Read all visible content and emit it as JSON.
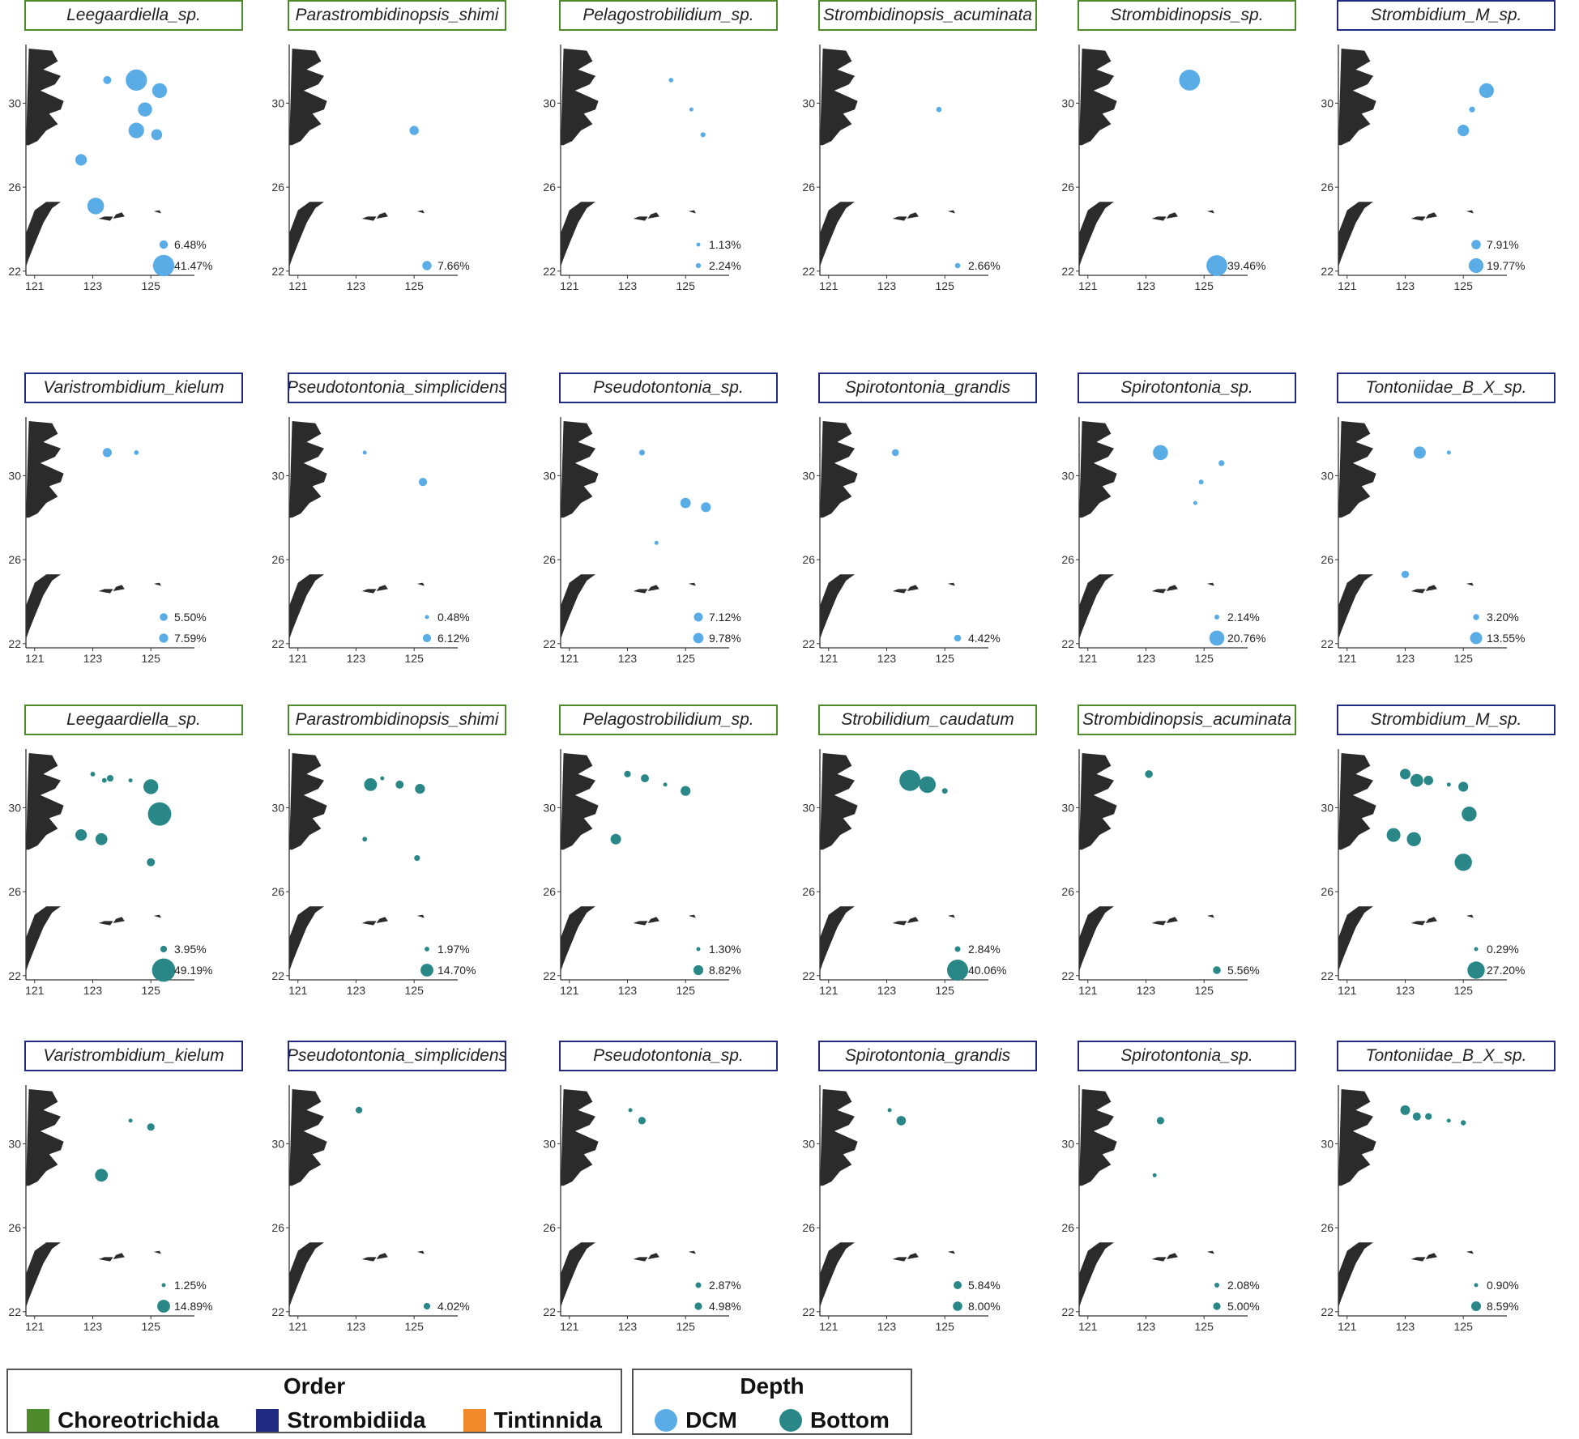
{
  "colors": {
    "land": "#2b2b2b",
    "dcm": "#5aace6",
    "bottom": "#2a8787",
    "Choreotrichida": "#4e8a2c",
    "Strombidiida": "#1f2a80",
    "Tintinnida": "#f08a2a"
  },
  "axes": {
    "x_ticks": [
      "121",
      "123",
      "125"
    ],
    "y_ticks": [
      "30",
      "26",
      "22"
    ],
    "lon_range": [
      120.7,
      126.5
    ],
    "lat_range": [
      21.8,
      32.6
    ]
  },
  "chart_data": {
    "type": "scatter",
    "x_axis": "longitude",
    "y_axis": "latitude",
    "size_scale": "relative abundance (%)",
    "panels": [
      {
        "name": "Leegaardiella_sp.",
        "order": "Choreotrichida",
        "depth": "DCM",
        "legend": [
          {
            "label": "6.48%",
            "size": 6.48
          },
          {
            "label": "41.47%",
            "size": 41.47
          }
        ],
        "points": [
          {
            "lon": 123.5,
            "lat": 31.1,
            "size": 6
          },
          {
            "lon": 124.5,
            "lat": 31.1,
            "size": 41
          },
          {
            "lon": 125.3,
            "lat": 30.6,
            "size": 20
          },
          {
            "lon": 124.8,
            "lat": 29.7,
            "size": 18
          },
          {
            "lon": 124.5,
            "lat": 28.7,
            "size": 22
          },
          {
            "lon": 125.2,
            "lat": 28.5,
            "size": 11
          },
          {
            "lon": 122.6,
            "lat": 27.3,
            "size": 12
          },
          {
            "lon": 123.1,
            "lat": 25.1,
            "size": 25
          }
        ]
      },
      {
        "name": "Parastrombidinopsis_shimi",
        "order": "Choreotrichida",
        "depth": "DCM",
        "legend": [
          {
            "label": "7.66%",
            "size": 7.66
          }
        ],
        "points": [
          {
            "lon": 125.0,
            "lat": 28.7,
            "size": 7.66
          }
        ]
      },
      {
        "name": "Pelagostrobilidium_sp.",
        "order": "Choreotrichida",
        "depth": "DCM",
        "legend": [
          {
            "label": "1.13%",
            "size": 1.13
          },
          {
            "label": "2.24%",
            "size": 2.24
          }
        ],
        "points": [
          {
            "lon": 124.5,
            "lat": 31.1,
            "size": 1.8
          },
          {
            "lon": 125.2,
            "lat": 29.7,
            "size": 0.6
          },
          {
            "lon": 125.6,
            "lat": 28.5,
            "size": 2.24
          }
        ]
      },
      {
        "name": "Strombidinopsis_acuminata",
        "order": "Choreotrichida",
        "depth": "DCM",
        "legend": [
          {
            "label": "2.66%",
            "size": 2.66
          }
        ],
        "points": [
          {
            "lon": 124.8,
            "lat": 29.7,
            "size": 2.66
          }
        ]
      },
      {
        "name": "Strombidinopsis_sp.",
        "order": "Choreotrichida",
        "depth": "DCM",
        "legend": [
          {
            "label": "39.46%",
            "size": 39.46
          }
        ],
        "points": [
          {
            "lon": 124.5,
            "lat": 31.1,
            "size": 39.46
          }
        ]
      },
      {
        "name": "Strombidium_M_sp.",
        "order": "Strombidiida",
        "depth": "DCM",
        "legend": [
          {
            "label": "7.91%",
            "size": 7.91
          },
          {
            "label": "19.77%",
            "size": 19.77
          }
        ],
        "points": [
          {
            "lon": 125.8,
            "lat": 30.6,
            "size": 19.77
          },
          {
            "lon": 125.3,
            "lat": 29.7,
            "size": 3
          },
          {
            "lon": 125.0,
            "lat": 28.7,
            "size": 12
          }
        ]
      },
      {
        "name": "Varistrombidium_kielum",
        "order": "Strombidiida",
        "depth": "DCM",
        "legend": [
          {
            "label": "5.50%",
            "size": 5.5
          },
          {
            "label": "7.59%",
            "size": 7.59
          }
        ],
        "points": [
          {
            "lon": 123.5,
            "lat": 31.1,
            "size": 7.59
          },
          {
            "lon": 124.5,
            "lat": 31.1,
            "size": 2
          }
        ]
      },
      {
        "name": "Pseudotontonia_simplicidens",
        "order": "Strombidiida",
        "depth": "DCM",
        "legend": [
          {
            "label": "0.48%",
            "size": 0.48
          },
          {
            "label": "6.12%",
            "size": 6.12
          }
        ],
        "points": [
          {
            "lon": 123.3,
            "lat": 31.1,
            "size": 0.48
          },
          {
            "lon": 125.3,
            "lat": 29.7,
            "size": 6.12
          }
        ]
      },
      {
        "name": "Pseudotontonia_sp.",
        "order": "Strombidiida",
        "depth": "DCM",
        "legend": [
          {
            "label": "7.12%",
            "size": 7.12
          },
          {
            "label": "9.78%",
            "size": 9.78
          }
        ],
        "points": [
          {
            "lon": 123.5,
            "lat": 31.1,
            "size": 3
          },
          {
            "lon": 125.0,
            "lat": 28.7,
            "size": 9.78
          },
          {
            "lon": 125.7,
            "lat": 28.5,
            "size": 9
          },
          {
            "lon": 124.0,
            "lat": 26.8,
            "size": 0.8
          }
        ]
      },
      {
        "name": "Spirotontonia_grandis",
        "order": "Strombidiida",
        "depth": "DCM",
        "legend": [
          {
            "label": "4.42%",
            "size": 4.42
          }
        ],
        "points": [
          {
            "lon": 123.3,
            "lat": 31.1,
            "size": 4.42
          }
        ]
      },
      {
        "name": "Spirotontonia_sp.",
        "order": "Strombidiida",
        "depth": "DCM",
        "legend": [
          {
            "label": "2.14%",
            "size": 2.14
          },
          {
            "label": "20.76%",
            "size": 20.76
          }
        ],
        "points": [
          {
            "lon": 123.5,
            "lat": 31.1,
            "size": 20.76
          },
          {
            "lon": 125.6,
            "lat": 30.6,
            "size": 3
          },
          {
            "lon": 124.9,
            "lat": 29.7,
            "size": 2.14
          },
          {
            "lon": 124.7,
            "lat": 28.7,
            "size": 0.9
          }
        ]
      },
      {
        "name": "Tontoniidae_B_X_sp.",
        "order": "Strombidiida",
        "depth": "DCM",
        "legend": [
          {
            "label": "3.20%",
            "size": 3.2
          },
          {
            "label": "13.55%",
            "size": 13.55
          }
        ],
        "points": [
          {
            "lon": 123.5,
            "lat": 31.1,
            "size": 13.55
          },
          {
            "lon": 124.5,
            "lat": 31.1,
            "size": 1
          },
          {
            "lon": 123.0,
            "lat": 25.3,
            "size": 5
          }
        ]
      },
      {
        "name": "Leegaardiella_sp.",
        "order": "Choreotrichida",
        "depth": "Bottom",
        "legend": [
          {
            "label": "3.95%",
            "size": 3.95
          },
          {
            "label": "49.19%",
            "size": 49.19
          }
        ],
        "points": [
          {
            "lon": 123.0,
            "lat": 31.6,
            "size": 2
          },
          {
            "lon": 123.4,
            "lat": 31.3,
            "size": 2
          },
          {
            "lon": 123.6,
            "lat": 31.4,
            "size": 4
          },
          {
            "lon": 124.3,
            "lat": 31.3,
            "size": 1.5
          },
          {
            "lon": 125.0,
            "lat": 31.0,
            "size": 20
          },
          {
            "lon": 125.3,
            "lat": 29.7,
            "size": 49.19
          },
          {
            "lon": 122.6,
            "lat": 28.7,
            "size": 12
          },
          {
            "lon": 123.3,
            "lat": 28.5,
            "size": 13
          },
          {
            "lon": 125.0,
            "lat": 27.4,
            "size": 6
          }
        ]
      },
      {
        "name": "Parastrombidinopsis_shimi",
        "order": "Choreotrichida",
        "depth": "Bottom",
        "legend": [
          {
            "label": "1.97%",
            "size": 1.97
          },
          {
            "label": "14.70%",
            "size": 14.7
          }
        ],
        "points": [
          {
            "lon": 123.5,
            "lat": 31.1,
            "size": 14.7
          },
          {
            "lon": 123.9,
            "lat": 31.4,
            "size": 1.5
          },
          {
            "lon": 124.5,
            "lat": 31.1,
            "size": 6
          },
          {
            "lon": 125.2,
            "lat": 30.9,
            "size": 9
          },
          {
            "lon": 123.3,
            "lat": 28.5,
            "size": 2
          },
          {
            "lon": 125.1,
            "lat": 27.6,
            "size": 3
          }
        ]
      },
      {
        "name": "Pelagostrobilidium_sp.",
        "order": "Choreotrichida",
        "depth": "Bottom",
        "legend": [
          {
            "label": "1.30%",
            "size": 1.3
          },
          {
            "label": "8.82%",
            "size": 8.82
          }
        ],
        "points": [
          {
            "lon": 123.0,
            "lat": 31.6,
            "size": 4
          },
          {
            "lon": 123.6,
            "lat": 31.4,
            "size": 6
          },
          {
            "lon": 124.3,
            "lat": 31.1,
            "size": 1.3
          },
          {
            "lon": 125.0,
            "lat": 30.8,
            "size": 8.82
          },
          {
            "lon": 122.6,
            "lat": 28.5,
            "size": 10
          }
        ]
      },
      {
        "name": "Strobilidium_caudatum",
        "order": "Choreotrichida",
        "depth": "Bottom",
        "legend": [
          {
            "label": "2.84%",
            "size": 2.84
          },
          {
            "label": "40.06%",
            "size": 40.06
          }
        ],
        "points": [
          {
            "lon": 123.8,
            "lat": 31.3,
            "size": 40.06
          },
          {
            "lon": 124.4,
            "lat": 31.1,
            "size": 25
          },
          {
            "lon": 125.0,
            "lat": 30.8,
            "size": 2.84
          }
        ]
      },
      {
        "name": "Strombidinopsis_acuminata",
        "order": "Choreotrichida",
        "depth": "Bottom",
        "legend": [
          {
            "label": "5.56%",
            "size": 5.56
          }
        ],
        "points": [
          {
            "lon": 123.1,
            "lat": 31.6,
            "size": 5.56
          }
        ]
      },
      {
        "name": "Strombidium_M_sp.",
        "order": "Strombidiida",
        "depth": "Bottom",
        "legend": [
          {
            "label": "0.29%",
            "size": 0.29
          },
          {
            "label": "27.20%",
            "size": 27.2
          }
        ],
        "points": [
          {
            "lon": 123.0,
            "lat": 31.6,
            "size": 10
          },
          {
            "lon": 123.4,
            "lat": 31.3,
            "size": 15
          },
          {
            "lon": 123.8,
            "lat": 31.3,
            "size": 8
          },
          {
            "lon": 124.5,
            "lat": 31.1,
            "size": 0.8
          },
          {
            "lon": 125.0,
            "lat": 31.0,
            "size": 9
          },
          {
            "lon": 125.2,
            "lat": 29.7,
            "size": 20
          },
          {
            "lon": 122.6,
            "lat": 28.7,
            "size": 17
          },
          {
            "lon": 123.3,
            "lat": 28.5,
            "size": 18
          },
          {
            "lon": 125.0,
            "lat": 27.4,
            "size": 27.2
          }
        ]
      },
      {
        "name": "Varistrombidium_kielum",
        "order": "Strombidiida",
        "depth": "Bottom",
        "legend": [
          {
            "label": "1.25%",
            "size": 1.25
          },
          {
            "label": "14.89%",
            "size": 14.89
          }
        ],
        "points": [
          {
            "lon": 124.3,
            "lat": 31.1,
            "size": 1.25
          },
          {
            "lon": 125.0,
            "lat": 30.8,
            "size": 5
          },
          {
            "lon": 123.3,
            "lat": 28.5,
            "size": 14.89
          }
        ]
      },
      {
        "name": "Pseudotontonia_simplicidens",
        "order": "Strombidiida",
        "depth": "Bottom",
        "legend": [
          {
            "label": "4.02%",
            "size": 4.02
          }
        ],
        "points": [
          {
            "lon": 123.1,
            "lat": 31.6,
            "size": 4.02
          }
        ]
      },
      {
        "name": "Pseudotontonia_sp.",
        "order": "Strombidiida",
        "depth": "Bottom",
        "legend": [
          {
            "label": "2.87%",
            "size": 2.87
          },
          {
            "label": "4.98%",
            "size": 4.98
          }
        ],
        "points": [
          {
            "lon": 123.1,
            "lat": 31.6,
            "size": 1
          },
          {
            "lon": 123.5,
            "lat": 31.1,
            "size": 4.98
          }
        ]
      },
      {
        "name": "Spirotontonia_grandis",
        "order": "Strombidiida",
        "depth": "Bottom",
        "legend": [
          {
            "label": "5.84%",
            "size": 5.84
          },
          {
            "label": "8.00%",
            "size": 8.0
          }
        ],
        "points": [
          {
            "lon": 123.1,
            "lat": 31.6,
            "size": 1.5
          },
          {
            "lon": 123.5,
            "lat": 31.1,
            "size": 8.0
          }
        ]
      },
      {
        "name": "Spirotontonia_sp.",
        "order": "Strombidiida",
        "depth": "Bottom",
        "legend": [
          {
            "label": "2.08%",
            "size": 2.08
          },
          {
            "label": "5.00%",
            "size": 5.0
          }
        ],
        "points": [
          {
            "lon": 123.5,
            "lat": 31.1,
            "size": 5.0
          },
          {
            "lon": 123.3,
            "lat": 28.5,
            "size": 1
          }
        ]
      },
      {
        "name": "Tontoniidae_B_X_sp.",
        "order": "Strombidiida",
        "depth": "Bottom",
        "legend": [
          {
            "label": "0.90%",
            "size": 0.9
          },
          {
            "label": "8.59%",
            "size": 8.59
          }
        ],
        "points": [
          {
            "lon": 123.0,
            "lat": 31.6,
            "size": 8.59
          },
          {
            "lon": 123.4,
            "lat": 31.3,
            "size": 6
          },
          {
            "lon": 123.8,
            "lat": 31.3,
            "size": 4
          },
          {
            "lon": 124.5,
            "lat": 31.1,
            "size": 0.9
          },
          {
            "lon": 125.0,
            "lat": 31.0,
            "size": 2.5
          }
        ]
      }
    ]
  },
  "legend": {
    "order": {
      "title": "Order",
      "items": [
        {
          "label": "Choreotrichida",
          "color": "#4e8a2c"
        },
        {
          "label": "Strombidiida",
          "color": "#1f2a80"
        },
        {
          "label": "Tintinnida",
          "color": "#f08a2a"
        }
      ]
    },
    "depth": {
      "title": "Depth",
      "items": [
        {
          "label": "DCM",
          "color": "#5aace6"
        },
        {
          "label": "Bottom",
          "color": "#2a8787"
        }
      ]
    }
  }
}
